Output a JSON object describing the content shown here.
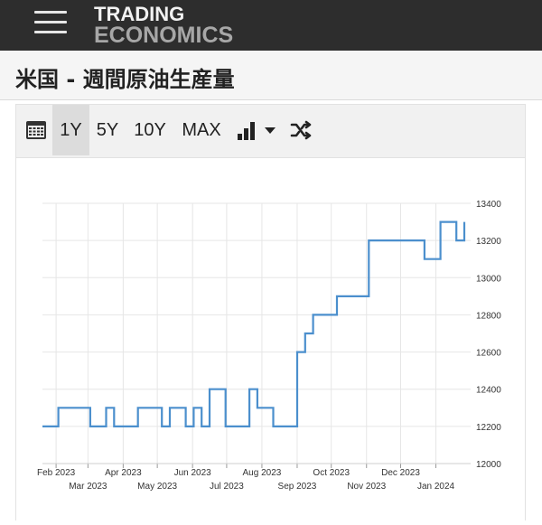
{
  "header": {
    "logo_line1": "TRADING",
    "logo_line2": "ECONOMICS"
  },
  "page": {
    "title": "米国 - 週間原油生産量"
  },
  "toolbar": {
    "ranges": [
      "1Y",
      "5Y",
      "10Y",
      "MAX"
    ],
    "selected": "1Y",
    "icons": [
      "calendar-icon",
      "bar-chart-icon",
      "caret-down-icon",
      "shuffle-icon"
    ]
  },
  "colors": {
    "line": "#4b8fcd",
    "grid": "#e6e6e6",
    "header_bg": "#2d2d2d"
  },
  "chart_data": {
    "type": "line",
    "step": true,
    "x_tick_labels": [
      "Feb 2023",
      "Mar 2023",
      "Apr 2023",
      "May 2023",
      "Jun 2023",
      "Jul 2023",
      "Aug 2023",
      "Sep 2023",
      "Oct 2023",
      "Nov 2023",
      "Dec 2023",
      "Jan 2024"
    ],
    "x_tick_dates": [
      "2023-02-01",
      "2023-03-01",
      "2023-04-01",
      "2023-05-01",
      "2023-06-01",
      "2023-07-01",
      "2023-08-01",
      "2023-09-01",
      "2023-10-01",
      "2023-11-01",
      "2023-12-01",
      "2024-01-01"
    ],
    "y_ticks": [
      12000,
      12200,
      12400,
      12600,
      12800,
      13000,
      13200,
      13400
    ],
    "ylim": [
      12000,
      13400
    ],
    "xlim": [
      "2023-01-20",
      "2024-01-26"
    ],
    "grid": true,
    "y_axis_position": "right",
    "series": [
      {
        "points": [
          [
            "2023-01-20",
            12200
          ],
          [
            "2023-01-27",
            12200
          ],
          [
            "2023-02-03",
            12300
          ],
          [
            "2023-02-10",
            12300
          ],
          [
            "2023-02-17",
            12300
          ],
          [
            "2023-02-24",
            12300
          ],
          [
            "2023-03-03",
            12200
          ],
          [
            "2023-03-10",
            12200
          ],
          [
            "2023-03-17",
            12300
          ],
          [
            "2023-03-24",
            12200
          ],
          [
            "2023-03-31",
            12200
          ],
          [
            "2023-04-07",
            12200
          ],
          [
            "2023-04-14",
            12300
          ],
          [
            "2023-04-21",
            12300
          ],
          [
            "2023-04-28",
            12300
          ],
          [
            "2023-05-05",
            12200
          ],
          [
            "2023-05-12",
            12300
          ],
          [
            "2023-05-19",
            12300
          ],
          [
            "2023-05-26",
            12200
          ],
          [
            "2023-06-02",
            12300
          ],
          [
            "2023-06-09",
            12200
          ],
          [
            "2023-06-16",
            12400
          ],
          [
            "2023-06-23",
            12400
          ],
          [
            "2023-06-30",
            12200
          ],
          [
            "2023-07-07",
            12200
          ],
          [
            "2023-07-14",
            12200
          ],
          [
            "2023-07-21",
            12400
          ],
          [
            "2023-07-28",
            12300
          ],
          [
            "2023-08-04",
            12300
          ],
          [
            "2023-08-11",
            12200
          ],
          [
            "2023-08-18",
            12200
          ],
          [
            "2023-08-25",
            12200
          ],
          [
            "2023-09-01",
            12600
          ],
          [
            "2023-09-08",
            12700
          ],
          [
            "2023-09-15",
            12800
          ],
          [
            "2023-09-22",
            12800
          ],
          [
            "2023-09-29",
            12800
          ],
          [
            "2023-10-06",
            12900
          ],
          [
            "2023-10-13",
            12900
          ],
          [
            "2023-10-20",
            12900
          ],
          [
            "2023-10-27",
            12900
          ],
          [
            "2023-11-03",
            13200
          ],
          [
            "2023-11-10",
            13200
          ],
          [
            "2023-11-17",
            13200
          ],
          [
            "2023-11-24",
            13200
          ],
          [
            "2023-12-01",
            13200
          ],
          [
            "2023-12-08",
            13200
          ],
          [
            "2023-12-15",
            13200
          ],
          [
            "2023-12-22",
            13100
          ],
          [
            "2023-12-29",
            13100
          ],
          [
            "2024-01-05",
            13300
          ],
          [
            "2024-01-12",
            13300
          ],
          [
            "2024-01-19",
            13200
          ],
          [
            "2024-01-26",
            13300
          ]
        ]
      }
    ]
  }
}
